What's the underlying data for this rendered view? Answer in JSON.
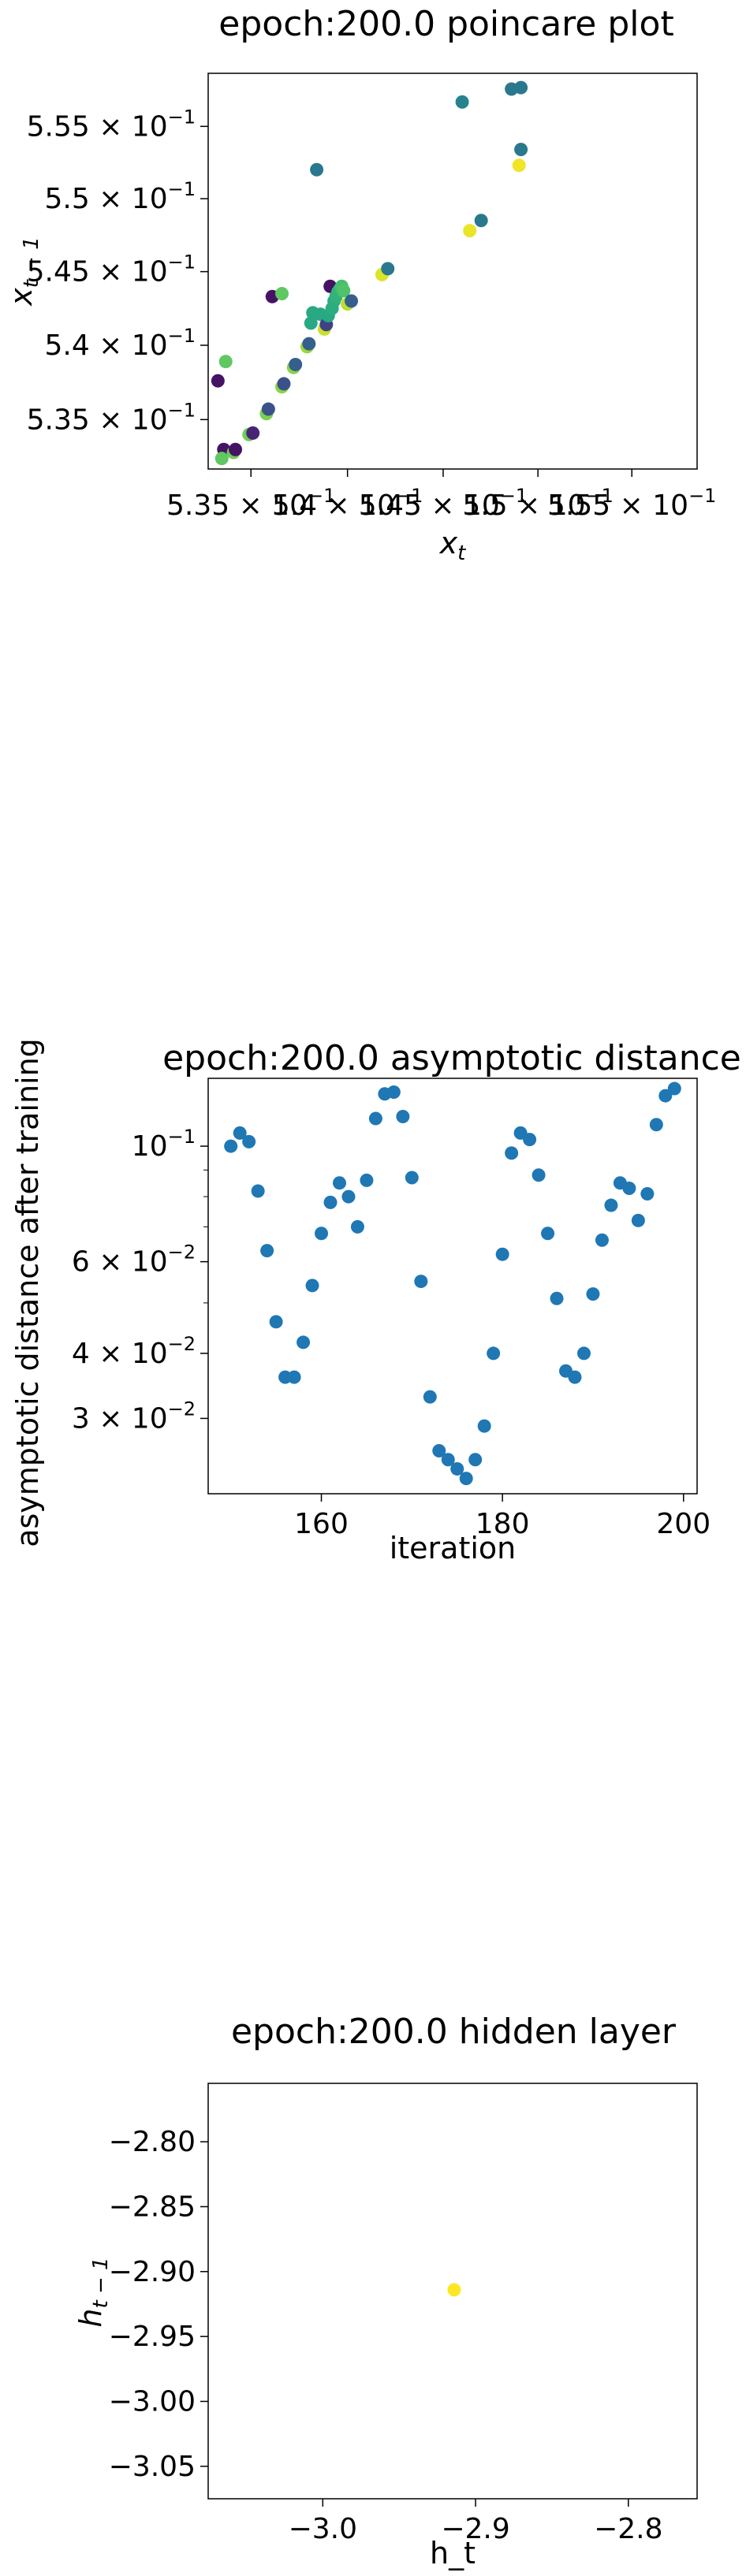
{
  "chart_data": [
    {
      "type": "scatter",
      "title": "epoch:200.0 poincare plot",
      "xlabel": "x_t",
      "ylabel": "x_{t-1}",
      "xscale": "log",
      "yscale": "log",
      "xlim": [
        0.5328,
        0.5585
      ],
      "ylim": [
        0.5317,
        0.5587
      ],
      "xticks": [
        {
          "value": 0.535,
          "label": "5.35 × 10^-1"
        },
        {
          "value": 0.54,
          "label": "5.4 × 10^-1"
        },
        {
          "value": 0.545,
          "label": "5.45 × 10^-1"
        },
        {
          "value": 0.55,
          "label": "5.5 × 10^-1"
        },
        {
          "value": 0.555,
          "label": "5.55 × 10^-1"
        }
      ],
      "yticks": [
        {
          "value": 0.535,
          "label": "5.35 × 10^-1"
        },
        {
          "value": 0.54,
          "label": "5.4 × 10^-1"
        },
        {
          "value": 0.545,
          "label": "5.45 × 10^-1"
        },
        {
          "value": 0.55,
          "label": "5.5 × 10^-1"
        },
        {
          "value": 0.555,
          "label": "5.55 × 10^-1"
        }
      ],
      "colormap": "viridis",
      "points": [
        {
          "x": 0.5333,
          "y": 0.5376,
          "c": 0.05
        },
        {
          "x": 0.5336,
          "y": 0.533,
          "c": 0.05
        },
        {
          "x": 0.5335,
          "y": 0.5324,
          "c": 0.75
        },
        {
          "x": 0.5337,
          "y": 0.5389,
          "c": 0.75
        },
        {
          "x": 0.5341,
          "y": 0.5328,
          "c": 0.78
        },
        {
          "x": 0.5342,
          "y": 0.533,
          "c": 0.05
        },
        {
          "x": 0.5349,
          "y": 0.534,
          "c": 0.78
        },
        {
          "x": 0.5351,
          "y": 0.5341,
          "c": 0.1
        },
        {
          "x": 0.5358,
          "y": 0.5354,
          "c": 0.8
        },
        {
          "x": 0.5359,
          "y": 0.5357,
          "c": 0.25
        },
        {
          "x": 0.5361,
          "y": 0.5433,
          "c": 0.05
        },
        {
          "x": 0.5366,
          "y": 0.5372,
          "c": 0.82
        },
        {
          "x": 0.5367,
          "y": 0.5374,
          "c": 0.25
        },
        {
          "x": 0.5366,
          "y": 0.5435,
          "c": 0.75
        },
        {
          "x": 0.5372,
          "y": 0.5385,
          "c": 0.82
        },
        {
          "x": 0.5373,
          "y": 0.5387,
          "c": 0.3
        },
        {
          "x": 0.5379,
          "y": 0.5399,
          "c": 0.85
        },
        {
          "x": 0.538,
          "y": 0.5401,
          "c": 0.3
        },
        {
          "x": 0.5381,
          "y": 0.5415,
          "c": 0.6
        },
        {
          "x": 0.5382,
          "y": 0.5422,
          "c": 0.6
        },
        {
          "x": 0.5384,
          "y": 0.552,
          "c": 0.4
        },
        {
          "x": 0.5386,
          "y": 0.5421,
          "c": 0.6
        },
        {
          "x": 0.5388,
          "y": 0.5411,
          "c": 0.92
        },
        {
          "x": 0.5389,
          "y": 0.5414,
          "c": 0.2
        },
        {
          "x": 0.539,
          "y": 0.542,
          "c": 0.6
        },
        {
          "x": 0.5391,
          "y": 0.544,
          "c": 0.05
        },
        {
          "x": 0.5392,
          "y": 0.5425,
          "c": 0.62
        },
        {
          "x": 0.5393,
          "y": 0.543,
          "c": 0.62
        },
        {
          "x": 0.5394,
          "y": 0.5433,
          "c": 0.64
        },
        {
          "x": 0.5395,
          "y": 0.5436,
          "c": 0.65
        },
        {
          "x": 0.5396,
          "y": 0.5438,
          "c": 0.66
        },
        {
          "x": 0.5397,
          "y": 0.544,
          "c": 0.7
        },
        {
          "x": 0.5398,
          "y": 0.5437,
          "c": 0.72
        },
        {
          "x": 0.54,
          "y": 0.5428,
          "c": 0.9
        },
        {
          "x": 0.5402,
          "y": 0.543,
          "c": 0.3
        },
        {
          "x": 0.5418,
          "y": 0.5448,
          "c": 0.95
        },
        {
          "x": 0.5421,
          "y": 0.5452,
          "c": 0.4
        },
        {
          "x": 0.546,
          "y": 0.5567,
          "c": 0.45
        },
        {
          "x": 0.5464,
          "y": 0.5478,
          "c": 0.97
        },
        {
          "x": 0.547,
          "y": 0.5485,
          "c": 0.4
        },
        {
          "x": 0.5486,
          "y": 0.5576,
          "c": 0.4
        },
        {
          "x": 0.5491,
          "y": 0.5577,
          "c": 0.4
        },
        {
          "x": 0.549,
          "y": 0.5523,
          "c": 0.98
        },
        {
          "x": 0.5491,
          "y": 0.5534,
          "c": 0.4
        }
      ]
    },
    {
      "type": "scatter",
      "title": "epoch:200.0 asymptotic distance",
      "xlabel": "iteration",
      "ylabel": "asymptotic distance after training",
      "yscale": "log",
      "xlim": [
        147.5,
        201.5
      ],
      "ylim": [
        0.0215,
        0.135
      ],
      "xticks": [
        160,
        180,
        200
      ],
      "yticks": [
        {
          "value": 0.1,
          "label": "10^-1"
        },
        {
          "value": 0.06,
          "label": "6 × 10^-2"
        },
        {
          "value": 0.04,
          "label": "4 × 10^-2"
        },
        {
          "value": 0.03,
          "label": "3 × 10^-2"
        }
      ],
      "color": "#1f77b4",
      "x": [
        150,
        151,
        152,
        153,
        154,
        155,
        156,
        157,
        158,
        159,
        160,
        161,
        162,
        163,
        164,
        165,
        166,
        167,
        168,
        169,
        170,
        171,
        172,
        173,
        174,
        175,
        176,
        177,
        178,
        179,
        180,
        181,
        182,
        183,
        184,
        185,
        186,
        187,
        188,
        189,
        190,
        191,
        192,
        193,
        194,
        195,
        196,
        197,
        198,
        199
      ],
      "y": [
        0.1,
        0.106,
        0.102,
        0.082,
        0.063,
        0.046,
        0.036,
        0.036,
        0.042,
        0.054,
        0.068,
        0.078,
        0.085,
        0.08,
        0.07,
        0.086,
        0.113,
        0.126,
        0.127,
        0.114,
        0.087,
        0.055,
        0.033,
        0.026,
        0.025,
        0.024,
        0.023,
        0.025,
        0.029,
        0.04,
        0.062,
        0.097,
        0.106,
        0.103,
        0.088,
        0.068,
        0.051,
        0.037,
        0.036,
        0.04,
        0.052,
        0.066,
        0.077,
        0.085,
        0.083,
        0.072,
        0.081,
        0.11,
        0.125,
        0.129
      ]
    },
    {
      "type": "scatter",
      "title": "epoch:200.0 hidden layer",
      "xlabel": "h_t",
      "ylabel": "h_{t-1}",
      "xlim": [
        -3.075,
        -2.755
      ],
      "ylim": [
        -3.075,
        -2.755
      ],
      "xticks": [
        -3.0,
        -2.9,
        -2.8
      ],
      "yticks": [
        -2.8,
        -2.85,
        -2.9,
        -2.95,
        -3.0,
        -3.05
      ],
      "points": [
        {
          "x": -2.914,
          "y": -2.914,
          "c": 1.0
        }
      ]
    }
  ]
}
